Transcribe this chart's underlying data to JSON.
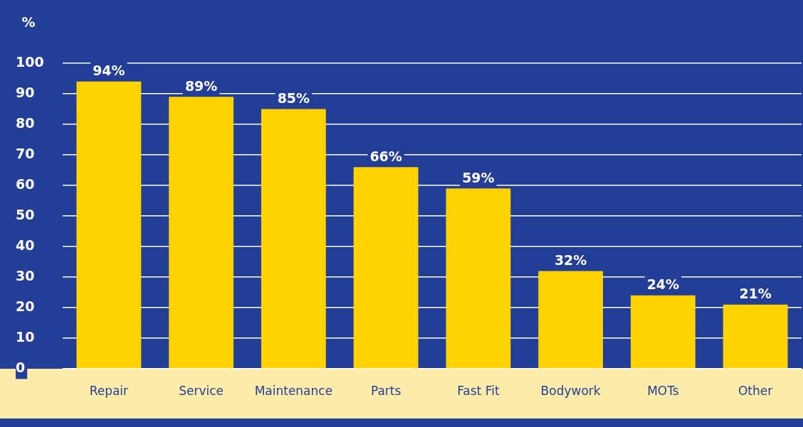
{
  "chart_data": {
    "type": "bar",
    "ylabel": "%",
    "categories": [
      "Repair",
      "Service",
      "Maintenance",
      "Parts",
      "Fast Fit",
      "Bodywork",
      "MOTs",
      "Other"
    ],
    "values": [
      94,
      89,
      85,
      66,
      59,
      32,
      24,
      21
    ],
    "value_labels": [
      "94%",
      "89%",
      "85%",
      "66%",
      "59%",
      "32%",
      "24%",
      "21%"
    ],
    "color": "#ffd200",
    "ylim": [
      0,
      100
    ],
    "yticks": [
      0,
      10,
      20,
      30,
      40,
      50,
      60,
      70,
      80,
      90,
      100
    ],
    "grid": "y",
    "legend": false
  }
}
